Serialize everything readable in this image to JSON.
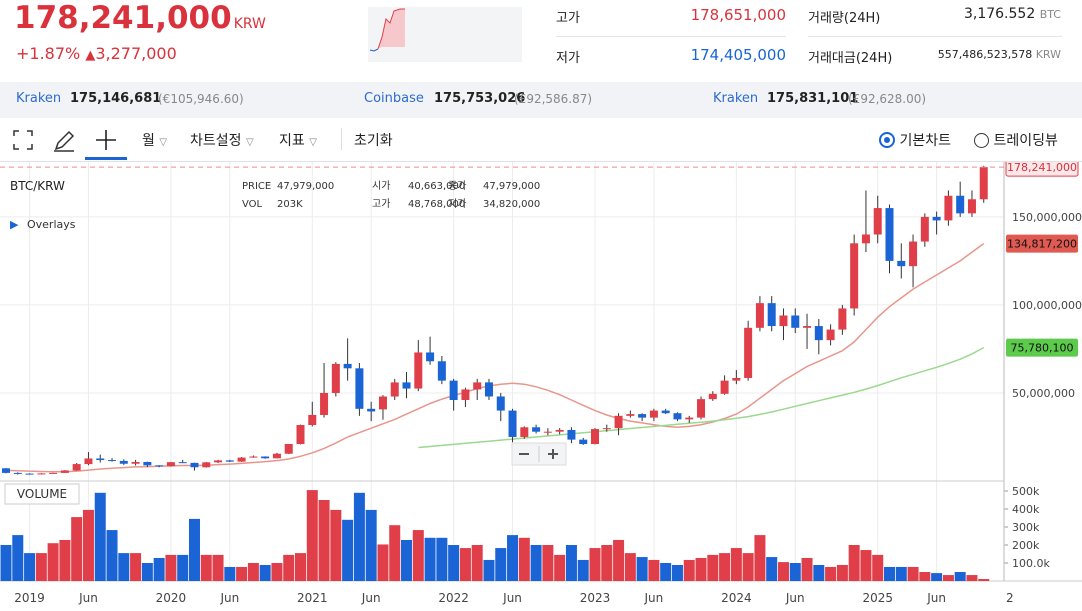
{
  "header": {
    "price": "178,241,000",
    "currency": "KRW",
    "change_pct": "+1.87%",
    "change_arrow": "▲",
    "change_abs": "3,277,000",
    "high_label": "고가",
    "high": "178,651,000",
    "low_label": "저가",
    "low": "174,405,000",
    "volume_label": "거래량(24H)",
    "volume": "3,176.552",
    "volume_unit": "BTC",
    "turnover_label": "거래대금(24H)",
    "turnover": "557,486,523,578",
    "turnover_unit": "KRW"
  },
  "exchanges": [
    {
      "name": "Kraken",
      "price": "175,146,681",
      "foreign": "(€105,946.60)"
    },
    {
      "name": "Coinbase",
      "price": "175,753,026",
      "foreign": "(£92,586.87)"
    },
    {
      "name": "Kraken",
      "price": "175,831,101",
      "foreign": "(£92,628.00)"
    }
  ],
  "toolbar": {
    "interval": "월",
    "settings": "차트설정",
    "indicators": "지표",
    "reset": "초기화",
    "basic": "기본차트",
    "tradingview": "트레이딩뷰"
  },
  "chart_data": {
    "type": "candlestick",
    "symbol": "BTC/KRW",
    "overlays_label": "Overlays",
    "volume_title": "VOLUME",
    "info": [
      [
        "PRICE",
        "47,979,000",
        "시가",
        "40,663,000",
        "종가",
        "47,979,000"
      ],
      [
        "VOL",
        "203K",
        "고가",
        "48,768,000",
        "저가",
        "34,820,000"
      ]
    ],
    "categories": [
      null,
      null,
      "2019",
      null,
      null,
      null,
      null,
      "Jun",
      null,
      null,
      null,
      null,
      null,
      null,
      "2020",
      null,
      null,
      null,
      null,
      "Jun",
      null,
      null,
      null,
      null,
      null,
      null,
      "2021",
      null,
      null,
      null,
      null,
      "Jun",
      null,
      null,
      null,
      null,
      null,
      null,
      "2022",
      null,
      null,
      null,
      null,
      "Jun",
      null,
      null,
      null,
      null,
      null,
      null,
      "2023",
      null,
      null,
      null,
      null,
      "Jun",
      null,
      null,
      null,
      null,
      null,
      null,
      "2024",
      null,
      null,
      null,
      null,
      "Jun",
      null,
      null,
      null,
      null,
      null,
      null,
      "2025",
      null,
      null,
      null,
      null,
      "Jun",
      null,
      null,
      null,
      null,
      null,
      null,
      "2"
    ],
    "ohlc": [
      [
        7200000.0,
        7400000.0,
        4300000.0,
        4600000.0
      ],
      [
        4600000.0,
        4900000.0,
        3600000.0,
        4200000.0
      ],
      [
        4200000.0,
        4400000.0,
        3800000.0,
        3900000.0
      ],
      [
        3900000.0,
        4500000.0,
        3800000.0,
        4300000.0
      ],
      [
        4300000.0,
        4700000.0,
        4200000.0,
        4600000.0
      ],
      [
        4600000.0,
        6200000.0,
        4600000.0,
        6000000.0
      ],
      [
        6000000.0,
        10200000.0,
        5800000.0,
        9600000.0
      ],
      [
        9600000.0,
        16400000.0,
        9000000.0,
        12800000.0
      ],
      [
        12800000.0,
        15000000.0,
        10500000.0,
        11900000.0
      ],
      [
        11900000.0,
        13000000.0,
        11000000.0,
        11400000.0
      ],
      [
        11400000.0,
        12300000.0,
        9200000.0,
        9800000.0
      ],
      [
        9800000.0,
        12000000.0,
        8800000.0,
        10800000.0
      ],
      [
        10800000.0,
        11000000.0,
        7900000.0,
        8900000.0
      ],
      [
        8900000.0,
        9000000.0,
        7800000.0,
        8400000.0
      ],
      [
        8400000.0,
        10800000.0,
        8200000.0,
        10700000.0
      ],
      [
        10700000.0,
        12000000.0,
        10200000.0,
        10300000.0
      ],
      [
        10300000.0,
        10400000.0,
        5900000.0,
        7800000.0
      ],
      [
        7800000.0,
        10800000.0,
        7600000.0,
        10600000.0
      ],
      [
        10600000.0,
        12000000.0,
        10200000.0,
        11700000.0
      ],
      [
        11700000.0,
        12000000.0,
        10800000.0,
        11000000.0
      ],
      [
        11000000.0,
        13600000.0,
        10900000.0,
        13300000.0
      ],
      [
        13300000.0,
        14500000.0,
        13200000.0,
        13900000.0
      ],
      [
        13900000.0,
        14000000.0,
        12600000.0,
        12900000.0
      ],
      [
        12900000.0,
        16000000.0,
        12800000.0,
        15500000.0
      ],
      [
        15500000.0,
        21000000.0,
        15300000.0,
        21000000.0
      ],
      [
        21000000.0,
        32000000.0,
        20800000.0,
        31800000.0
      ],
      [
        31800000.0,
        45000000.0,
        31000000.0,
        37500000.0
      ],
      [
        37500000.0,
        67000000.0,
        36000000.0,
        50000000.0
      ],
      [
        50000000.0,
        67500000.0,
        48000000.0,
        66500000.0
      ],
      [
        66500000.0,
        81000000.0,
        57000000.0,
        64000000.0
      ],
      [
        64000000.0,
        67000000.0,
        37000000.0,
        41000000.0
      ],
      [
        41000000.0,
        45000000.0,
        34000000.0,
        39500000.0
      ],
      [
        40663000.0,
        48768000.0,
        34820000.0,
        47979000.0
      ],
      [
        47979000.0,
        58000000.0,
        46000000.0,
        56000000.0
      ],
      [
        56000000.0,
        62000000.0,
        47000000.0,
        52500000.0
      ],
      [
        52500000.0,
        80000000.0,
        51000000.0,
        73000000.0
      ],
      [
        73000000.0,
        82000000.0,
        66000000.0,
        68000000.0
      ],
      [
        68000000.0,
        71000000.0,
        55000000.0,
        57000000.0
      ],
      [
        57000000.0,
        58000000.0,
        40000000.0,
        46000000.0
      ],
      [
        46000000.0,
        53000000.0,
        42000000.0,
        52000000.0
      ],
      [
        52000000.0,
        58000000.0,
        46000000.0,
        56000000.0
      ],
      [
        56000000.0,
        58000000.0,
        46000000.0,
        48000000.0
      ],
      [
        48000000.0,
        50000000.0,
        34000000.0,
        40000000.0
      ],
      [
        40000000.0,
        41000000.0,
        22000000.0,
        25000000.0
      ],
      [
        25000000.0,
        31000000.0,
        24000000.0,
        30500000.0
      ],
      [
        30500000.0,
        32000000.0,
        27000000.0,
        28000000.0
      ],
      [
        28000000.0,
        30000000.0,
        26000000.0,
        28000000.0
      ],
      [
        28000000.0,
        30000000.0,
        26500000.0,
        29000000.0
      ],
      [
        29000000.0,
        30500000.0,
        21500000.0,
        23500000.0
      ],
      [
        23500000.0,
        24500000.0,
        20500000.0,
        21000000.0
      ],
      [
        21000000.0,
        30000000.0,
        20800000.0,
        29500000.0
      ],
      [
        29500000.0,
        32000000.0,
        28000000.0,
        30000000.0
      ],
      [
        30000000.0,
        38500000.0,
        26000000.0,
        37000000.0
      ],
      [
        37000000.0,
        40000000.0,
        36000000.0,
        38000000.0
      ],
      [
        38000000.0,
        38500000.0,
        34000000.0,
        36000000.0
      ],
      [
        36000000.0,
        41000000.0,
        34000000.0,
        40000000.0
      ],
      [
        40000000.0,
        41000000.0,
        38000000.0,
        38500000.0
      ],
      [
        38500000.0,
        39000000.0,
        34000000.0,
        35000000.0
      ],
      [
        35000000.0,
        37000000.0,
        33000000.0,
        36000000.0
      ],
      [
        36000000.0,
        48000000.0,
        35000000.0,
        46500000.0
      ],
      [
        46500000.0,
        51000000.0,
        45500000.0,
        49500000.0
      ],
      [
        49500000.0,
        60000000.0,
        49000000.0,
        57000000.0
      ],
      [
        57000000.0,
        63000000.0,
        55000000.0,
        58500000.0
      ],
      [
        58500000.0,
        91000000.0,
        57000000.0,
        87000000.0
      ],
      [
        87000000.0,
        105000000.0,
        85000000.0,
        101000000.0
      ],
      [
        101000000.0,
        105000000.0,
        85000000.0,
        88000000.0
      ],
      [
        88000000.0,
        98000000.0,
        80000000.0,
        94000000.0
      ],
      [
        94000000.0,
        98000000.0,
        84000000.0,
        87000000.0
      ],
      [
        87000000.0,
        95000000.0,
        75000000.0,
        88000000.0
      ],
      [
        88000000.0,
        92000000.0,
        72000000.0,
        80000000.0
      ],
      [
        80000000.0,
        89000000.0,
        77000000.0,
        86000000.0
      ],
      [
        86000000.0,
        100000000.0,
        83000000.0,
        98000000.0
      ],
      [
        98000000.0,
        140000000.0,
        94000000.0,
        135000000.0
      ],
      [
        135000000.0,
        165000000.0,
        130000000.0,
        140000000.0
      ],
      [
        140000000.0,
        162000000.0,
        135000000.0,
        155000000.0
      ],
      [
        155000000.0,
        157000000.0,
        118000000.0,
        125000000.0
      ],
      [
        125000000.0,
        135000000.0,
        115000000.0,
        122000000.0
      ],
      [
        122000000.0,
        140000000.0,
        110000000.0,
        136000000.0
      ],
      [
        136000000.0,
        152000000.0,
        133000000.0,
        150000000.0
      ],
      [
        150000000.0,
        153000000.0,
        140000000.0,
        148000000.0
      ],
      [
        148000000.0,
        165000000.0,
        145000000.0,
        162000000.0
      ],
      [
        162000000.0,
        170000000.0,
        150000000.0,
        152000000.0
      ],
      [
        152000000.0,
        165000000.0,
        150000000.0,
        160000000.0
      ],
      [
        160000000.0,
        179000000.0,
        158000000.0,
        178241000.0
      ],
      null,
      null,
      null
    ],
    "up_color": "#e03e48",
    "down_color": "#1a64d6",
    "last_price_label": "178,241,000",
    "overlays": [
      {
        "color": "#e8968c",
        "label": "134,817,200",
        "values": [
          6000000.0,
          5800000.0,
          5600000.0,
          5400000.0,
          5200000.0,
          5300000.0,
          5600000.0,
          6200000.0,
          6800000.0,
          7200000.0,
          7600000.0,
          8000000.0,
          8200000.0,
          8400000.0,
          8600000.0,
          8800000.0,
          8800000.0,
          9000000.0,
          9300000.0,
          9600000.0,
          10000000.0,
          10500000.0,
          11000000.0,
          11600000.0,
          12500000.0,
          14000000.0,
          16000000.0,
          18500000.0,
          21500000.0,
          25000000.0,
          27500000.0,
          30000000.0,
          32500000.0,
          35000000.0,
          38000000.0,
          41000000.0,
          44000000.0,
          46500000.0,
          48500000.0,
          50500000.0,
          52500000.0,
          54000000.0,
          55000000.0,
          55500000.0,
          55000000.0,
          53500000.0,
          51500000.0,
          49000000.0,
          46000000.0,
          43000000.0,
          40000000.0,
          37500000.0,
          35500000.0,
          34000000.0,
          33000000.0,
          32000000.0,
          31000000.0,
          30500000.0,
          31000000.0,
          32000000.0,
          33500000.0,
          35500000.0,
          38000000.0,
          42000000.0,
          47000000.0,
          52000000.0,
          57000000.0,
          61000000.0,
          65000000.0,
          68000000.0,
          71000000.0,
          74000000.0,
          79000000.0,
          86000000.0,
          93000000.0,
          99000000.0,
          104000000.0,
          109000000.0,
          113000000.0,
          117000000.0,
          121000000.0,
          125000000.0,
          130000000.0,
          134817200.0,
          null,
          null,
          null
        ],
        "tag_color": "#e05a52"
      },
      {
        "color": "#9ad98e",
        "label": "75,780,100",
        "tag_color": "#5ccb4c",
        "values": [
          null,
          null,
          null,
          null,
          null,
          null,
          null,
          null,
          null,
          null,
          null,
          null,
          null,
          null,
          null,
          null,
          null,
          null,
          null,
          null,
          null,
          null,
          null,
          null,
          null,
          null,
          null,
          null,
          null,
          null,
          null,
          null,
          null,
          null,
          null,
          19000000.0,
          19600000.0,
          20200000.0,
          20800000.0,
          21400000.0,
          22000000.0,
          22600000.0,
          23200000.0,
          23800000.0,
          24400000.0,
          25000000.0,
          25600000.0,
          26200000.0,
          26800000.0,
          27400000.0,
          28000000.0,
          28600000.0,
          29200000.0,
          29800000.0,
          30400000.0,
          31000000.0,
          31600000.0,
          32200000.0,
          32800000.0,
          33400000.0,
          34000000.0,
          34800000.0,
          35600000.0,
          36600000.0,
          37800000.0,
          39200000.0,
          40800000.0,
          42400000.0,
          44000000.0,
          45600000.0,
          47200000.0,
          48800000.0,
          50400000.0,
          52200000.0,
          54200000.0,
          56400000.0,
          58600000.0,
          60600000.0,
          62600000.0,
          64600000.0,
          66800000.0,
          69200000.0,
          72200000.0,
          75780100.0,
          null,
          null,
          null
        ]
      }
    ],
    "ylim": [
      0,
      180600000
    ],
    "yticks": [
      {
        "value": 50000000,
        "label": "50,000,000"
      },
      {
        "value": 100000000,
        "label": "100,000,000"
      },
      {
        "value": 150000000,
        "label": "150,000,000"
      }
    ],
    "volume": [
      200000.0,
      255000.0,
      155000.0,
      155000.0,
      210000.0,
      228000.0,
      355000.0,
      395000.0,
      490000.0,
      283000.0,
      155000.0,
      155000.0,
      100000.0,
      128000.0,
      145000.0,
      145000.0,
      345000.0,
      145000.0,
      145000.0,
      78000.0,
      78000.0,
      100000.0,
      89000.0,
      100000.0,
      145000.0,
      155000.0,
      505000.0,
      450000.0,
      395000.0,
      340000.0,
      490000.0,
      395000.0,
      203000.0,
      310000.0,
      228000.0,
      283000.0,
      240000.0,
      240000.0,
      200000.0,
      183000.0,
      200000.0,
      117000.0,
      183000.0,
      255000.0,
      240000.0,
      200000.0,
      200000.0,
      145000.0,
      200000.0,
      117000.0,
      183000.0,
      200000.0,
      228000.0,
      155000.0,
      133000.0,
      117000.0,
      100000.0,
      89000.0,
      117000.0,
      128000.0,
      145000.0,
      155000.0,
      183000.0,
      155000.0,
      255000.0,
      133000.0,
      105000.0,
      100000.0,
      128000.0,
      89000.0,
      78000.0,
      89000.0,
      200000.0,
      172000.0,
      145000.0,
      78000.0,
      78000.0,
      78000.0,
      50000.0,
      44000.0,
      33000.0,
      50000.0,
      33000.0,
      11000.0,
      null,
      null,
      null
    ],
    "vlim": [
      0,
      550000
    ],
    "vticks": [
      {
        "value": 100000,
        "label": "100.0k"
      },
      {
        "value": 200000,
        "label": "200k"
      },
      {
        "value": 300000,
        "label": "300k"
      },
      {
        "value": 400000,
        "label": "400k"
      },
      {
        "value": 500000,
        "label": "500k"
      }
    ],
    "grid": true
  }
}
